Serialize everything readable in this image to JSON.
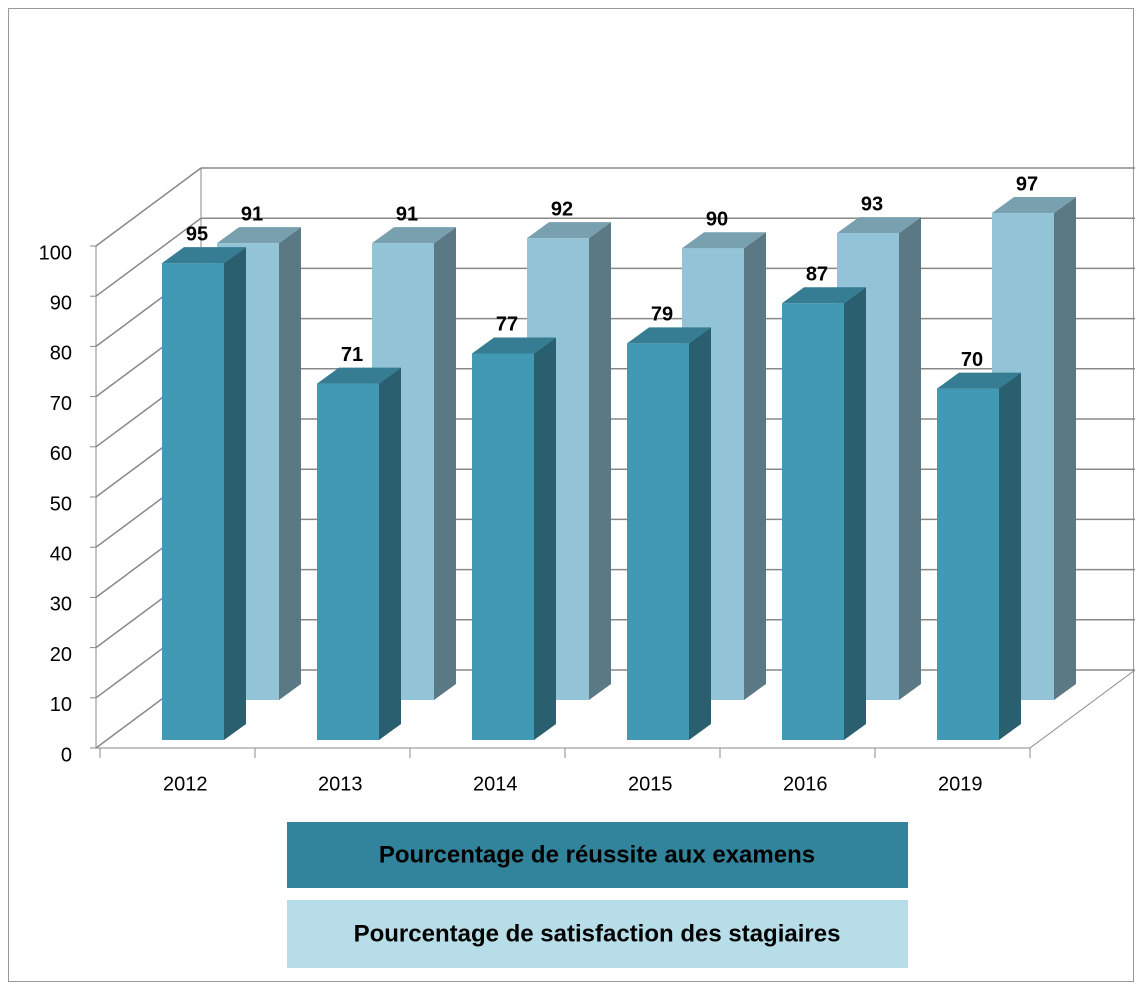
{
  "chart_data": {
    "type": "bar3d",
    "categories": [
      "2012",
      "2013",
      "2014",
      "2015",
      "2016",
      "2019"
    ],
    "series": [
      {
        "name": "Pourcentage de réussite aux examens",
        "color": "#4299b3",
        "values": [
          95,
          71,
          77,
          79,
          87,
          70
        ]
      },
      {
        "name": "Pourcentage de satisfaction des stagiaires",
        "color": "#92c3d6",
        "values": [
          91,
          91,
          92,
          90,
          93,
          97
        ]
      }
    ],
    "ylim": [
      0,
      100
    ],
    "yticks": [
      0,
      10,
      20,
      30,
      40,
      50,
      60,
      70,
      80,
      90,
      100
    ],
    "grid": true
  }
}
